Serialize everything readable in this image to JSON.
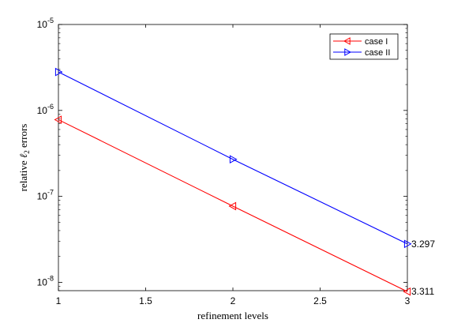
{
  "chart_data": {
    "type": "line",
    "xlabel": "refinement levels",
    "ylabel": "relative ℓ2 errors",
    "ylabel_prefix": "relative ",
    "ylabel_symbol": "ℓ",
    "ylabel_sub": "2",
    "ylabel_suffix": " errors",
    "xlim": [
      1,
      3
    ],
    "ylim": [
      8e-09,
      1e-05
    ],
    "yscale": "log",
    "grid": false,
    "legend_position": "top-right",
    "x": [
      1,
      2,
      3
    ],
    "x_ticks": [
      "1",
      "1.5",
      "2",
      "2.5",
      "3"
    ],
    "x_tick_values": [
      1,
      1.5,
      2,
      2.5,
      3
    ],
    "y_ticks": [
      {
        "value": 1e-08,
        "base": "10",
        "exp": "-8"
      },
      {
        "value": 1e-07,
        "base": "10",
        "exp": "-7"
      },
      {
        "value": 1e-06,
        "base": "10",
        "exp": "-6"
      },
      {
        "value": 1e-05,
        "base": "10",
        "exp": "-5"
      }
    ],
    "series": [
      {
        "name": "case I",
        "color": "#ff0000",
        "marker": "triangle-left",
        "values": [
          7.8e-07,
          7.7e-08,
          7.8e-09
        ]
      },
      {
        "name": "case II",
        "color": "#0000ff",
        "marker": "triangle-right",
        "values": [
          2.8e-06,
          2.7e-07,
          2.8e-08
        ]
      }
    ],
    "annotations": [
      {
        "text": "3.297",
        "x": 3,
        "y": 2.8e-08
      },
      {
        "text": "3.311",
        "x": 3,
        "y": 7.8e-09
      }
    ]
  }
}
